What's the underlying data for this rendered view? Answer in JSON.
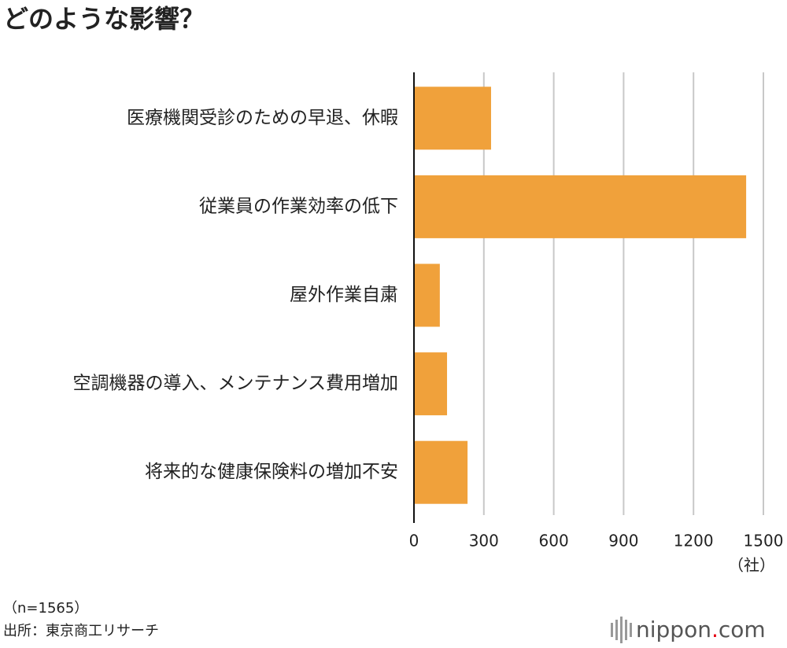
{
  "chart_data": {
    "type": "bar",
    "orientation": "horizontal",
    "title": "どのような影響？",
    "categories": [
      "医療機関受診のための早退、休暇",
      "従業員の作業効率の低下",
      "屋外作業自粛",
      "空調機器の導入、メンテナンス費用増加",
      "将来的な健康保険料の増加不安"
    ],
    "values": [
      331,
      1426,
      111,
      142,
      230
    ],
    "color": "#f0a13b",
    "xlim": [
      0,
      1500
    ],
    "xticks": [
      0,
      300,
      600,
      900,
      1200,
      1500
    ],
    "grid": true,
    "unit": "（社）",
    "note": "（n=1565）",
    "source": "出所：東京商工リサーチ"
  },
  "logo": {
    "name": "nippon",
    "dot": ".",
    "domain": "com"
  }
}
